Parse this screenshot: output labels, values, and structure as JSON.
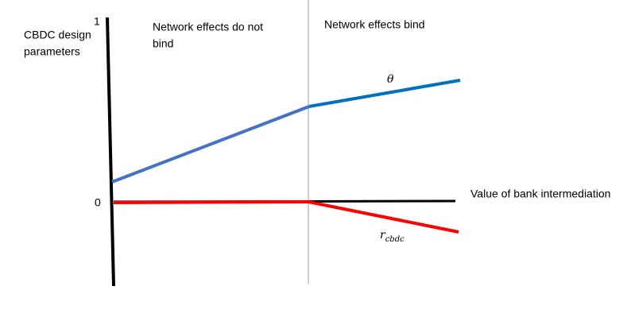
{
  "axis": {
    "y_label_lines": [
      "CBDC design",
      "parameters"
    ],
    "top": "1",
    "origin": "0",
    "x_label": "Value of bank intermediation"
  },
  "regions": [
    {
      "label_lines": [
        "Network effects do not",
        "bind"
      ]
    },
    {
      "label_lines": [
        "Network effects bind"
      ]
    }
  ],
  "curves": [
    {
      "label": "θ"
    },
    {
      "label": "r",
      "subscript": "cbdc"
    }
  ]
}
